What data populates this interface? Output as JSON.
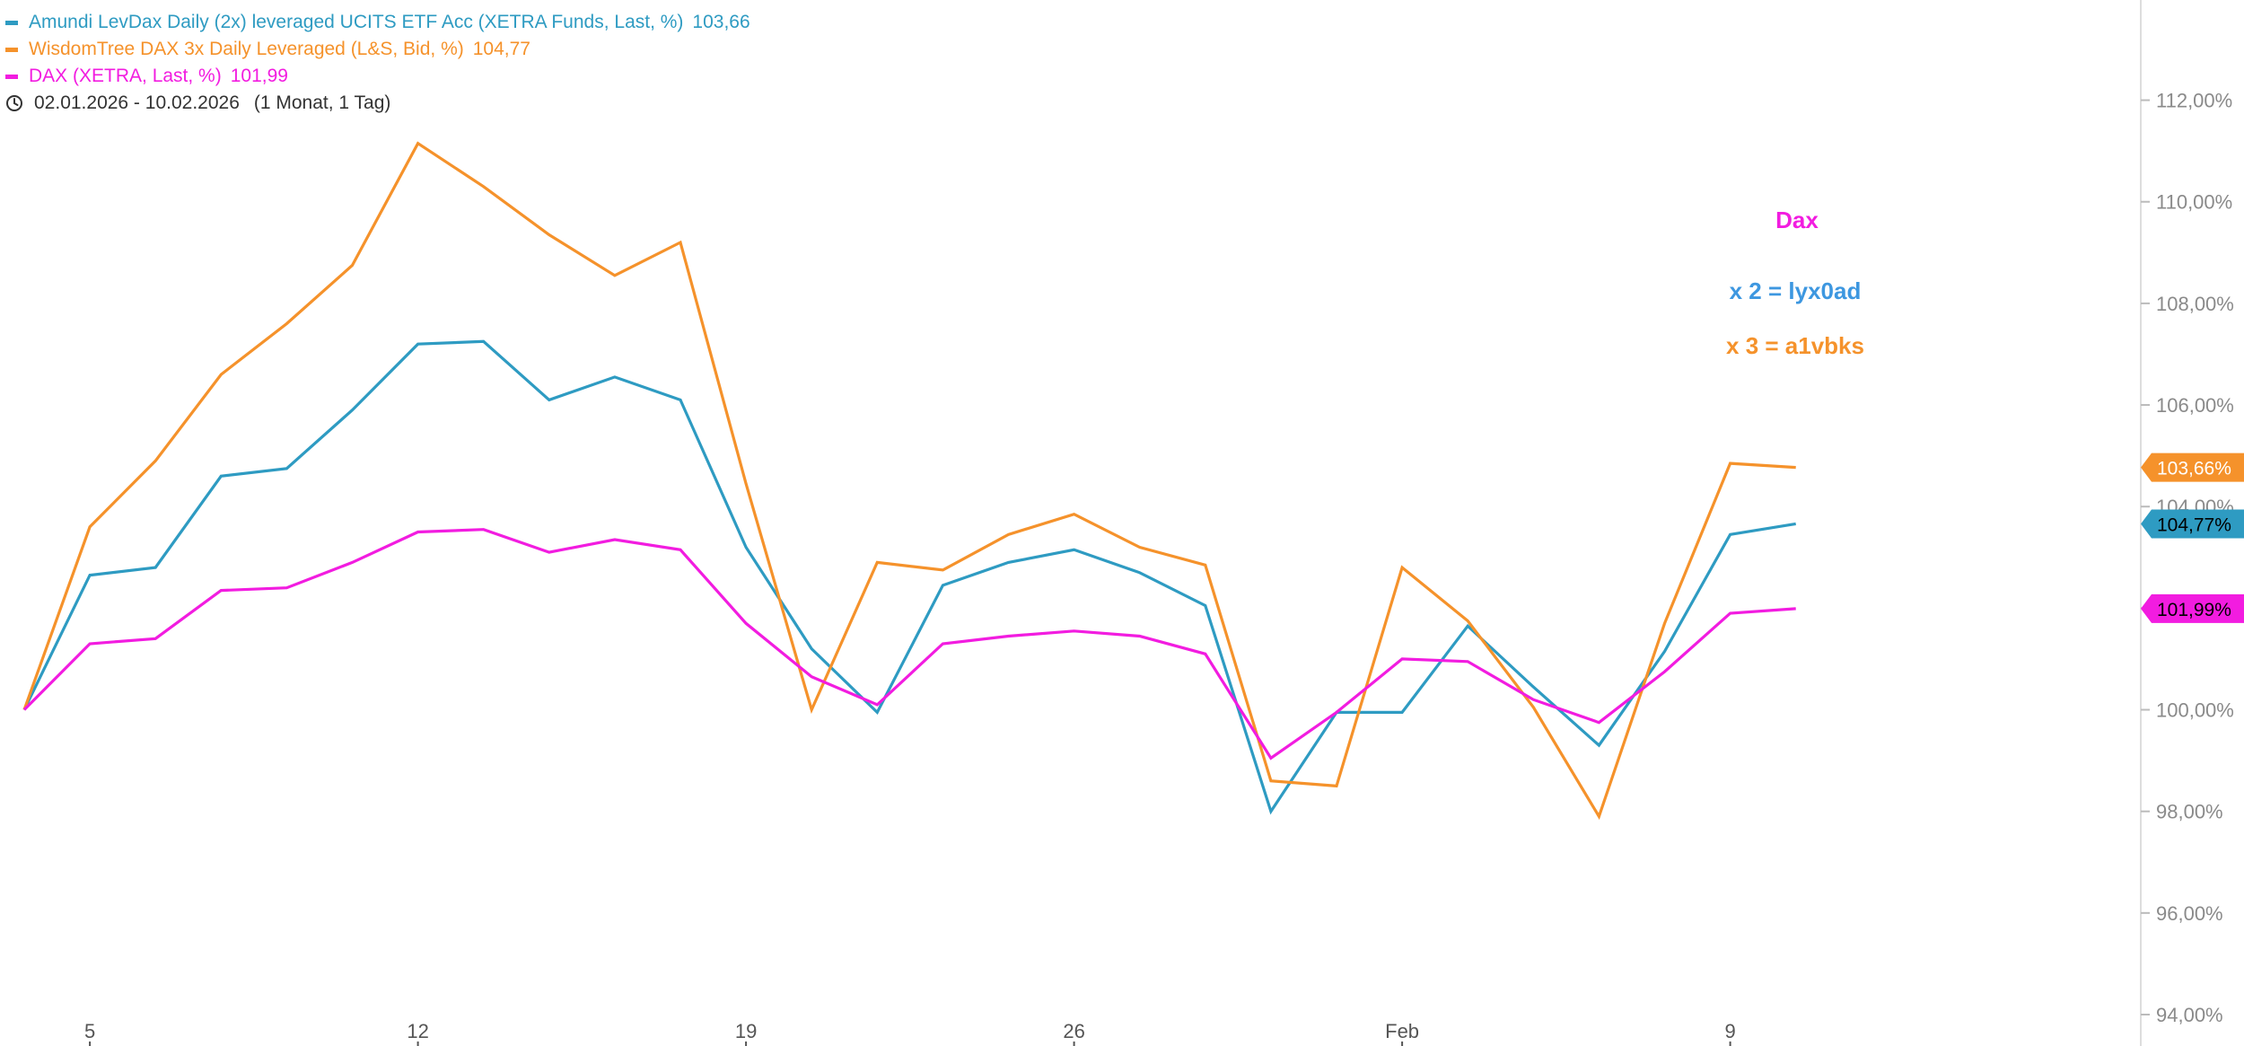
{
  "legend": {
    "items": [
      {
        "label": "Amundi LevDax Daily (2x) leveraged UCITS ETF Acc (XETRA Funds, Last, %)",
        "value": "103,66",
        "color": "#2e9bc2"
      },
      {
        "label": "WisdomTree DAX 3x Daily Leveraged (L&S, Bid, %)",
        "value": "104,77",
        "color": "#f5922b"
      },
      {
        "label": "DAX (XETRA, Last, %)",
        "value": "101,99",
        "color": "#f21ce0"
      }
    ],
    "date_range": "02.01.2026 - 10.02.2026",
    "period": "(1 Monat, 1 Tag)",
    "date_icon": "clock-icon"
  },
  "annotations": {
    "title": "Dax",
    "x2": "x 2 = lyx0ad",
    "x3": "x 3 = a1vbks",
    "title_color": "#f21ce0",
    "x2_color": "#3d97e0",
    "x3_color": "#f5922b"
  },
  "chart_data": {
    "type": "line",
    "x": [
      "2026-01-02",
      "2026-01-05",
      "2026-01-06",
      "2026-01-07",
      "2026-01-08",
      "2026-01-09",
      "2026-01-12",
      "2026-01-13",
      "2026-01-14",
      "2026-01-15",
      "2026-01-16",
      "2026-01-19",
      "2026-01-20",
      "2026-01-21",
      "2026-01-22",
      "2026-01-23",
      "2026-01-26",
      "2026-01-27",
      "2026-01-28",
      "2026-01-29",
      "2026-01-30",
      "2026-02-02",
      "2026-02-03",
      "2026-02-04",
      "2026-02-05",
      "2026-02-06",
      "2026-02-09",
      "2026-02-10"
    ],
    "series": [
      {
        "name": "Amundi LevDax Daily (2x) leveraged UCITS ETF Acc (XETRA Funds, Last, %)",
        "color": "#2e9bc2",
        "values": [
          100.0,
          102.65,
          102.8,
          104.6,
          104.75,
          105.9,
          107.2,
          107.25,
          106.1,
          106.55,
          106.1,
          103.2,
          101.2,
          99.95,
          102.45,
          102.9,
          103.15,
          102.7,
          102.05,
          98.0,
          99.95,
          99.95,
          101.65,
          100.45,
          99.3,
          101.15,
          103.45,
          103.66
        ]
      },
      {
        "name": "WisdomTree DAX 3x Daily Leveraged (L&S, Bid, %)",
        "color": "#f5922b",
        "values": [
          100.0,
          103.6,
          104.9,
          106.6,
          107.6,
          108.75,
          111.15,
          110.3,
          109.35,
          108.55,
          109.2,
          104.45,
          100.0,
          102.9,
          102.75,
          103.45,
          103.85,
          103.2,
          102.85,
          98.6,
          98.5,
          102.8,
          101.75,
          100.05,
          97.9,
          101.7,
          104.85,
          104.77
        ]
      },
      {
        "name": "DAX (XETRA, Last, %)",
        "color": "#f21ce0",
        "values": [
          100.0,
          101.3,
          101.4,
          102.35,
          102.4,
          102.9,
          103.5,
          103.55,
          103.1,
          103.35,
          103.15,
          101.7,
          100.65,
          100.1,
          101.3,
          101.45,
          101.55,
          101.45,
          101.1,
          99.05,
          99.95,
          101.0,
          100.95,
          100.2,
          99.75,
          100.75,
          101.9,
          101.99
        ]
      }
    ],
    "ylim": [
      94,
      113
    ],
    "y_ticks": [
      "94,00%",
      "96,00%",
      "98,00%",
      "100,00%",
      "102,00%",
      "104,00%",
      "106,00%",
      "108,00%",
      "110,00%",
      "112,00%"
    ],
    "x_ticks": [
      {
        "label": "5",
        "date": "2026-01-05"
      },
      {
        "label": "12",
        "date": "2026-01-12"
      },
      {
        "label": "19",
        "date": "2026-01-19"
      },
      {
        "label": "26",
        "date": "2026-01-26"
      },
      {
        "label": "Feb",
        "date": "2026-02-02"
      },
      {
        "label": "9",
        "date": "2026-02-09"
      }
    ],
    "end_labels": [
      "104,77%",
      "103,66%",
      "101,99%"
    ],
    "end_label_text_colors": [
      "#000000",
      "#ffffff",
      "#000000"
    ],
    "grid": false,
    "legend_position": "top-left"
  }
}
